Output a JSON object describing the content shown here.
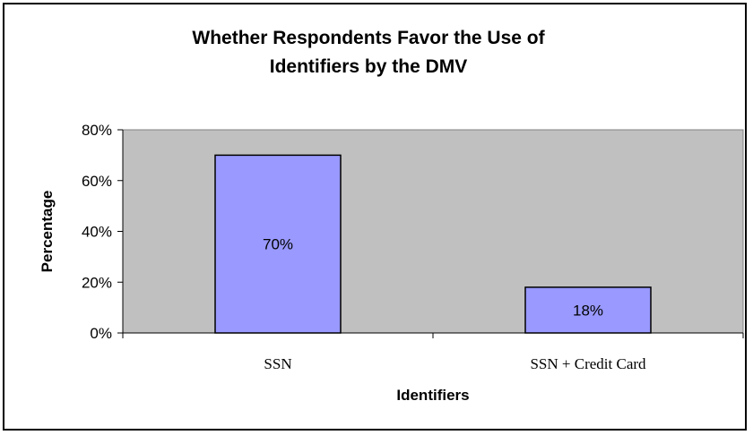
{
  "chart_data": {
    "type": "bar",
    "title_lines": [
      "Whether Respondents Favor the Use of",
      "Identifiers by the DMV"
    ],
    "xlabel": "Identifiers",
    "ylabel": "Percentage",
    "categories": [
      "SSN",
      "SSN + Credit Card"
    ],
    "values": [
      70,
      18
    ],
    "data_labels": [
      "70%",
      "18%"
    ],
    "yticks": [
      "0%",
      "20%",
      "40%",
      "60%",
      "80%"
    ],
    "ylim": [
      0,
      80
    ],
    "grid": false,
    "legend": "none",
    "colors": {
      "plot_background": "#c0c0c0",
      "bar_fill": "#9999ff",
      "bar_stroke": "#000000"
    }
  }
}
